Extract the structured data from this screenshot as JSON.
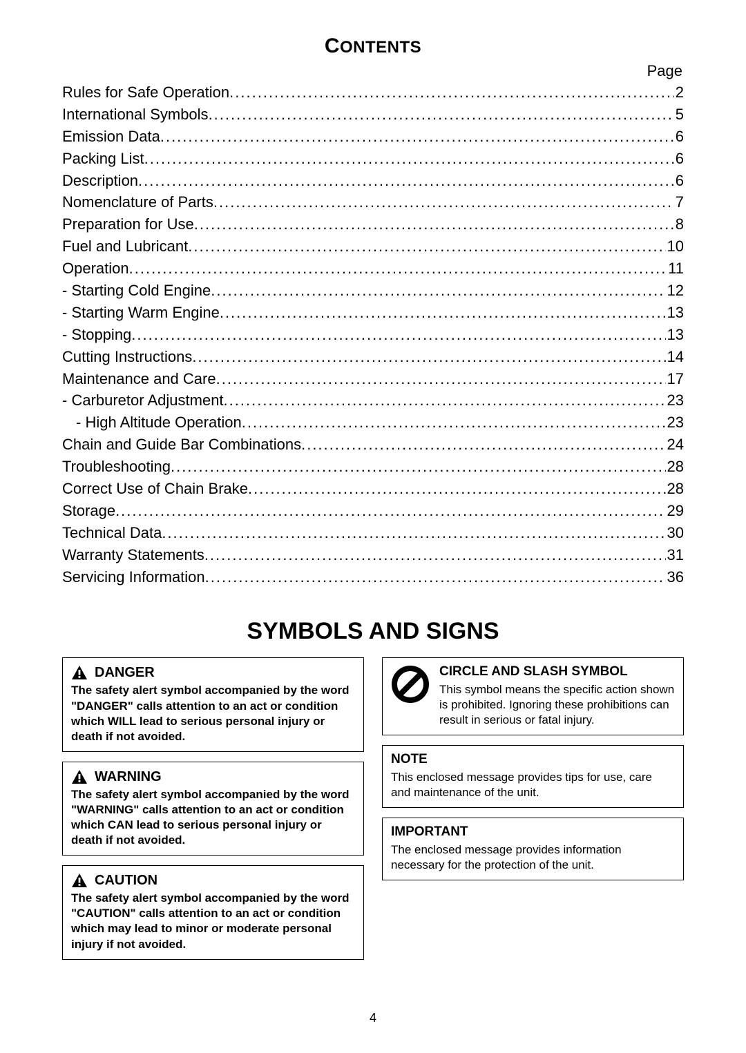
{
  "contents": {
    "title_main": "C",
    "title_smallcaps": "ONTENTS",
    "page_label": "Page",
    "items": [
      {
        "label": "Rules for Safe Operation",
        "page": "2",
        "indent": 0
      },
      {
        "label": "International Symbols",
        "page": "5",
        "indent": 0
      },
      {
        "label": "Emission Data",
        "page": "6",
        "indent": 0
      },
      {
        "label": "Packing List",
        "page": "6",
        "indent": 0
      },
      {
        "label": "Description",
        "page": "6",
        "indent": 0
      },
      {
        "label": "Nomenclature of Parts",
        "page": "7",
        "indent": 0
      },
      {
        "label": "Preparation for Use",
        "page": "8",
        "indent": 0
      },
      {
        "label": "Fuel and Lubricant",
        "page": "10",
        "indent": 0
      },
      {
        "label": "Operation",
        "page": "11",
        "indent": 0
      },
      {
        "label": "- Starting Cold Engine",
        "page": "12",
        "indent": 0
      },
      {
        "label": "- Starting Warm Engine",
        "page": "13",
        "indent": 0
      },
      {
        "label": "- Stopping",
        "page": "13",
        "indent": 0
      },
      {
        "label": "Cutting Instructions",
        "page": "14",
        "indent": 0
      },
      {
        "label": "Maintenance and Care",
        "page": "17",
        "indent": 0
      },
      {
        "label": "- Carburetor Adjustment",
        "page": "23",
        "indent": 0
      },
      {
        "label": "- High Altitude Operation",
        "page": "23",
        "indent": 1
      },
      {
        "label": "Chain and Guide Bar Combinations",
        "page": "24",
        "indent": 0
      },
      {
        "label": "Troubleshooting",
        "page": "28",
        "indent": 0
      },
      {
        "label": "Correct Use of Chain Brake",
        "page": "28",
        "indent": 0
      },
      {
        "label": "Storage",
        "page": "29",
        "indent": 0
      },
      {
        "label": "Technical Data",
        "page": "30",
        "indent": 0
      },
      {
        "label": "Warranty Statements",
        "page": "31",
        "indent": 0
      },
      {
        "label": "Servicing Information",
        "page": "36",
        "indent": 0
      }
    ]
  },
  "symbols": {
    "title": "SYMBOLS AND SIGNS",
    "danger": {
      "heading": "DANGER",
      "body": "The safety alert symbol accompanied by the word \"DANGER\" calls attention to an act or condition which WILL lead to serious personal injury or death if not avoided."
    },
    "warning": {
      "heading": "WARNING",
      "body": "The safety alert symbol accompanied by the word \"WARNING\" calls attention to an act or condition which CAN lead to serious personal injury or death if not avoided."
    },
    "caution": {
      "heading": "CAUTION",
      "body": "The safety alert symbol accompanied by the word \"CAUTION\" calls attention to an act or condition which may lead to minor or moderate personal injury if not avoided."
    },
    "circle": {
      "heading": "CIRCLE AND SLASH SYMBOL",
      "body": "This symbol means the specific action shown is prohibited. Ignoring these prohibitions can result in serious or fatal injury."
    },
    "note": {
      "heading": "NOTE",
      "body": "This enclosed message provides tips for use, care and maintenance of the unit."
    },
    "important": {
      "heading": "IMPORTANT",
      "body": "The enclosed message provides information necessary for the protection of the unit."
    }
  },
  "footer": {
    "page_number": "4"
  },
  "style": {
    "text_color": "#000000",
    "background_color": "#ffffff",
    "border_color": "#000000",
    "body_font_size_pt": 17,
    "heading_font_size_pt": 20,
    "contents_title_size_pt": 30,
    "symbols_title_size_pt": 34,
    "toc_font_size_pt": 22
  }
}
